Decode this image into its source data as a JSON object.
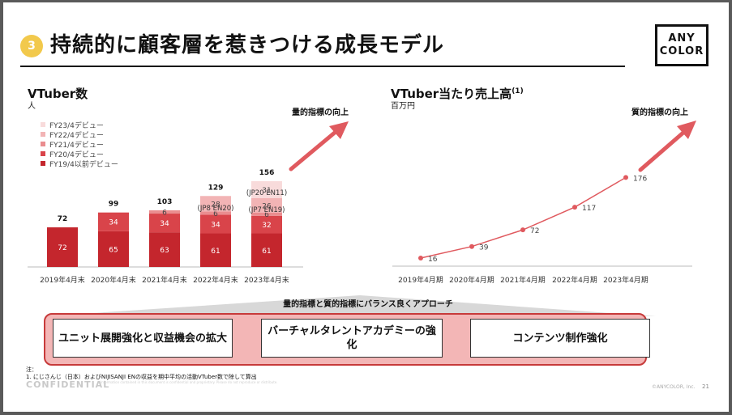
{
  "header": {
    "badge": "3",
    "title": "持続的に顧客層を惹きつける成長モデル",
    "logo_line1": "ANY",
    "logo_line2": "COLOR"
  },
  "left_section": {
    "title": "VTuber数",
    "unit": "人",
    "callout": "量的指標の向上"
  },
  "right_section": {
    "title": "VTuber当たり売上高",
    "title_sup": "(1)",
    "unit": "百万円",
    "callout": "質的指標の向上"
  },
  "colors": {
    "fy19": "#c4262d",
    "fy20": "#d9444a",
    "fy21": "#ea8d8f",
    "fy22": "#f2b4b5",
    "fy23": "#f8dbdb",
    "accent": "#e05a5f",
    "badge": "#f2c94c"
  },
  "chart_data": [
    {
      "type": "bar",
      "stacked": true,
      "categories": [
        "2019年4月末",
        "2020年4月末",
        "2021年4月末",
        "2022年4月末",
        "2023年4月末"
      ],
      "series": [
        {
          "name": "FY19/4以前デビュー",
          "values": [
            72,
            65,
            63,
            61,
            61
          ]
        },
        {
          "name": "FY20/4デビュー",
          "values": [
            0,
            34,
            34,
            34,
            32
          ]
        },
        {
          "name": "FY21/4デビュー",
          "values": [
            0,
            0,
            6,
            6,
            6
          ]
        },
        {
          "name": "FY22/4デビュー",
          "values": [
            0,
            0,
            0,
            28,
            26
          ]
        },
        {
          "name": "FY23/4デビュー",
          "values": [
            0,
            0,
            0,
            0,
            31
          ]
        }
      ],
      "totals": [
        72,
        99,
        103,
        129,
        156
      ],
      "annotations": [
        {
          "category": "2022年4月末",
          "text": "(JP8 EN20)"
        },
        {
          "category": "2023年4月末",
          "text": "(JP20 EN11)"
        },
        {
          "category": "2023年4月末",
          "text": "(JP7 EN19)"
        }
      ],
      "legend_placement": "top-left",
      "ylim": [
        0,
        160
      ],
      "grid": false
    },
    {
      "type": "line",
      "categories": [
        "2019年4月期",
        "2020年4月期",
        "2021年4月期",
        "2022年4月期",
        "2023年4月期"
      ],
      "values": [
        16,
        39,
        72,
        117,
        176
      ],
      "ylim": [
        0,
        200
      ],
      "grid": false
    }
  ],
  "approach": {
    "label": "量的指標と質的指標にバランス良くアプローチ",
    "items": [
      "ユニット展開強化と収益機会の拡大",
      "バーチャルタレントアカデミーの強化",
      "コンテンツ制作強化"
    ]
  },
  "footer": {
    "note_label": "注：",
    "note_1": "1. にじさんじ（日本）およびNIJISANJI ENの収益を期中平均の活動VTuber数で除して算出",
    "confidential": "CONFIDENTIAL",
    "confidential_sub": "Information contained in this document is confidential and proprietary. Please do not reproduce or distribute.",
    "copyright": "©ANYCOLOR, Inc.",
    "page": "21"
  }
}
